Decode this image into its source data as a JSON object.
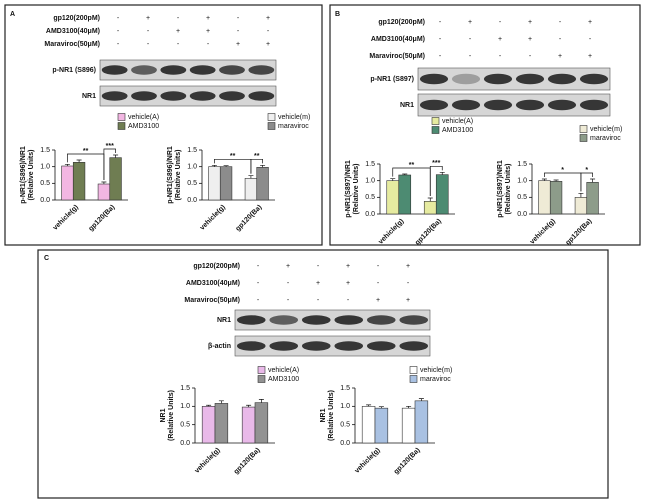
{
  "panels": [
    {
      "letter": "A",
      "treatments": [
        {
          "name": "gp120(200pM)",
          "signs": [
            "-",
            "+",
            "-",
            "+",
            "-",
            "+"
          ]
        },
        {
          "name": "AMD3100(40μM)",
          "signs": [
            "-",
            "-",
            "+",
            "+",
            "-",
            "-"
          ]
        },
        {
          "name": "Maraviroc(50μM)",
          "signs": [
            "-",
            "-",
            "-",
            "-",
            "+",
            "+"
          ]
        }
      ],
      "blots": [
        "p-NR1 (S896)",
        "NR1"
      ]
    },
    {
      "letter": "B",
      "treatments": [
        {
          "name": "gp120(200pM)",
          "signs": [
            "-",
            "+",
            "-",
            "+",
            "-",
            "+"
          ]
        },
        {
          "name": "AMD3100(40μM)",
          "signs": [
            "-",
            "-",
            "+",
            "+",
            "-",
            "-"
          ]
        },
        {
          "name": "Maraviroc(50μM)",
          "signs": [
            "-",
            "-",
            "-",
            "-",
            "+",
            "+"
          ]
        }
      ],
      "blots": [
        "p-NR1 (S897)",
        "NR1"
      ]
    },
    {
      "letter": "C",
      "treatments": [
        {
          "name": "gp120(200pM)",
          "signs": [
            "-",
            "+",
            "-",
            "+",
            "-",
            "+"
          ]
        },
        {
          "name": "AMD3100(40μM)",
          "signs": [
            "-",
            "-",
            "+",
            "+",
            "-",
            "-"
          ]
        },
        {
          "name": "Maraviroc(50μM)",
          "signs": [
            "-",
            "-",
            "-",
            "-",
            "+",
            "+"
          ]
        }
      ],
      "blots": [
        "NR1",
        "β-actin"
      ]
    }
  ],
  "chart_data": [
    {
      "type": "bar",
      "ylabel": [
        "p-NR1(S896)/NR1",
        "(Relative Units)"
      ],
      "categories": [
        "vehicle(g)",
        "gp120(Ba)"
      ],
      "series": [
        {
          "name": "vehicle(A)",
          "color": "#f2b6e2",
          "values": [
            1.02,
            0.48
          ],
          "errors": [
            0.05,
            0.06
          ]
        },
        {
          "name": "AMD3100",
          "color": "#6f7d52",
          "values": [
            1.13,
            1.27
          ],
          "errors": [
            0.07,
            0.08
          ]
        }
      ],
      "ylim": [
        0,
        1.5
      ],
      "yticks": [
        {
          "value": 0,
          "label": "0.0"
        },
        0.5,
        {
          "value": 1,
          "label": "1.0"
        },
        1.5
      ],
      "legend": "top-right",
      "annotations": [
        "**",
        "***"
      ]
    },
    {
      "type": "bar",
      "ylabel": [
        "p-NR1(S896)/NR1",
        "(Relative Units)"
      ],
      "categories": [
        "vehicle(g)",
        "gp120(Ba)"
      ],
      "series": [
        {
          "name": "vehicle(m)",
          "color": "#efefef",
          "values": [
            1.0,
            0.65
          ],
          "errors": [
            0.04,
            0.08
          ]
        },
        {
          "name": "maraviroc",
          "color": "#8c8c8c",
          "values": [
            1.0,
            0.98
          ],
          "errors": [
            0.03,
            0.06
          ]
        }
      ],
      "ylim": [
        0,
        1.5
      ],
      "yticks": [
        {
          "value": 0,
          "label": "0.0"
        },
        0.5,
        {
          "value": 1,
          "label": "1.0"
        },
        1.5
      ],
      "legend": "top-right",
      "annotations": [
        "**",
        "**"
      ]
    },
    {
      "type": "bar",
      "ylabel": [
        "p-NR1(S897)/NR1",
        "(Relative Units)"
      ],
      "categories": [
        "vehicle(g)",
        "gp120(Ba)"
      ],
      "series": [
        {
          "name": "vehicle(A)",
          "color": "#e6eba0",
          "values": [
            1.0,
            0.38
          ],
          "errors": [
            0.06,
            0.1
          ]
        },
        {
          "name": "AMD3100",
          "color": "#4d8b72",
          "values": [
            1.17,
            1.18
          ],
          "errors": [
            0.03,
            0.07
          ]
        }
      ],
      "ylim": [
        0,
        1.5
      ],
      "yticks": [
        {
          "value": 0,
          "label": "0.0"
        },
        0.5,
        {
          "value": 1,
          "label": "1.0"
        },
        1.5
      ],
      "legend": "top-right",
      "annotations": [
        "**",
        "***"
      ]
    },
    {
      "type": "bar",
      "ylabel": [
        "p-NR1(S897)/NR1",
        "(Relative Units)"
      ],
      "categories": [
        "vehicle(g)",
        "gp120(Ba)"
      ],
      "series": [
        {
          "name": "vehicle(m)",
          "color": "#efebd6",
          "values": [
            1.0,
            0.5
          ],
          "errors": [
            0.05,
            0.12
          ]
        },
        {
          "name": "maraviroc",
          "color": "#8d9c8a",
          "values": [
            0.98,
            0.95
          ],
          "errors": [
            0.04,
            0.1
          ]
        }
      ],
      "ylim": [
        0,
        1.5
      ],
      "yticks": [
        {
          "value": 0,
          "label": "0.0"
        },
        0.5,
        {
          "value": 1,
          "label": "1.0"
        },
        1.5
      ],
      "legend": "top-right",
      "annotations": [
        "*",
        "*"
      ]
    },
    {
      "type": "bar",
      "ylabel": [
        "NR1",
        "(Relative Units)"
      ],
      "categories": [
        "vehicle(g)",
        "gp120(Ba)"
      ],
      "series": [
        {
          "name": "vehicle(A)",
          "color": "#e9b9e9",
          "values": [
            1.0,
            0.98
          ],
          "errors": [
            0.03,
            0.05
          ]
        },
        {
          "name": "AMD3100",
          "color": "#929292",
          "values": [
            1.08,
            1.1
          ],
          "errors": [
            0.07,
            0.09
          ]
        }
      ],
      "ylim": [
        0,
        1.5
      ],
      "yticks": [
        {
          "value": 0,
          "label": "0.0"
        },
        0.5,
        {
          "value": 1,
          "label": "1.0"
        },
        1.5
      ],
      "legend": "top-right",
      "annotations": []
    },
    {
      "type": "bar",
      "ylabel": [
        "NR1",
        "(Relative Units)"
      ],
      "categories": [
        "vehicle(g)",
        "gp120(Ba)"
      ],
      "series": [
        {
          "name": "vehicle(m)",
          "color": "#ffffff",
          "values": [
            1.0,
            0.95
          ],
          "errors": [
            0.04,
            0.05
          ]
        },
        {
          "name": "maraviroc",
          "color": "#a9c1e2",
          "values": [
            0.95,
            1.15
          ],
          "errors": [
            0.04,
            0.06
          ]
        }
      ],
      "ylim": [
        0,
        1.5
      ],
      "yticks": [
        {
          "value": 0,
          "label": "0.0"
        },
        0.5,
        {
          "value": 1,
          "label": "1.0"
        },
        1.5
      ],
      "legend": "top-right",
      "annotations": []
    }
  ]
}
